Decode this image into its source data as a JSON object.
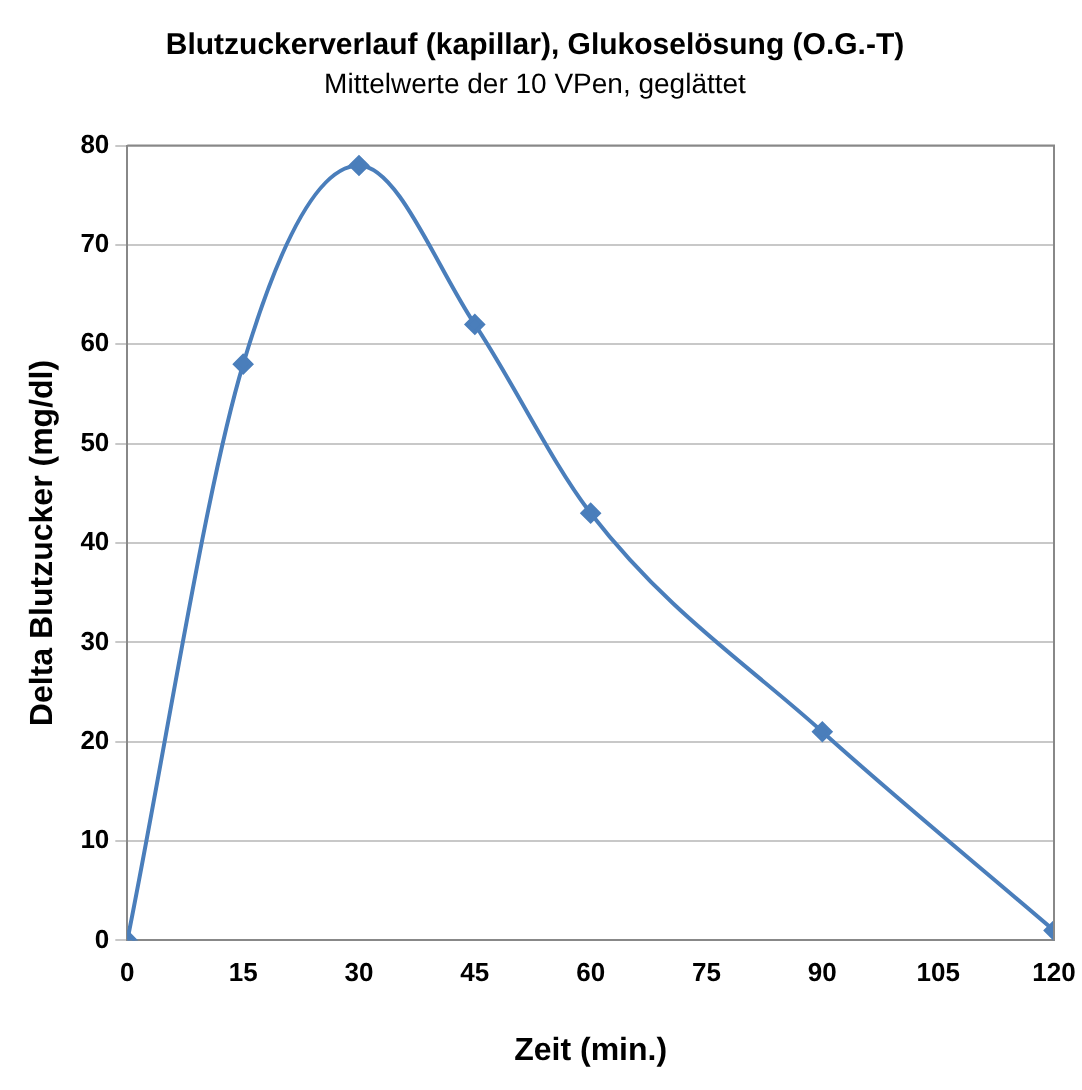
{
  "chart_data": {
    "type": "line",
    "title": "Blutzuckerverlauf (kapillar), Glukoselösung (O.G.-T)",
    "subtitle": "Mittelwerte der 10 VPen, geglättet",
    "xlabel": "Zeit (min.)",
    "ylabel": "Delta Blutzucker (mg/dl)",
    "x": [
      0,
      15,
      30,
      45,
      60,
      90,
      120
    ],
    "series": [
      {
        "color": "#4a7ebb",
        "values": [
          0,
          58,
          78,
          62,
          43,
          21,
          1
        ]
      }
    ],
    "xlim": [
      0,
      120
    ],
    "xticks": [
      0,
      15,
      30,
      45,
      60,
      75,
      90,
      105,
      120
    ],
    "ylim": [
      0,
      80
    ],
    "yticks": [
      0,
      10,
      20,
      30,
      40,
      50,
      60,
      70,
      80
    ],
    "grid": "y",
    "legend": false,
    "marker": "diamond",
    "line_style": "solid"
  }
}
